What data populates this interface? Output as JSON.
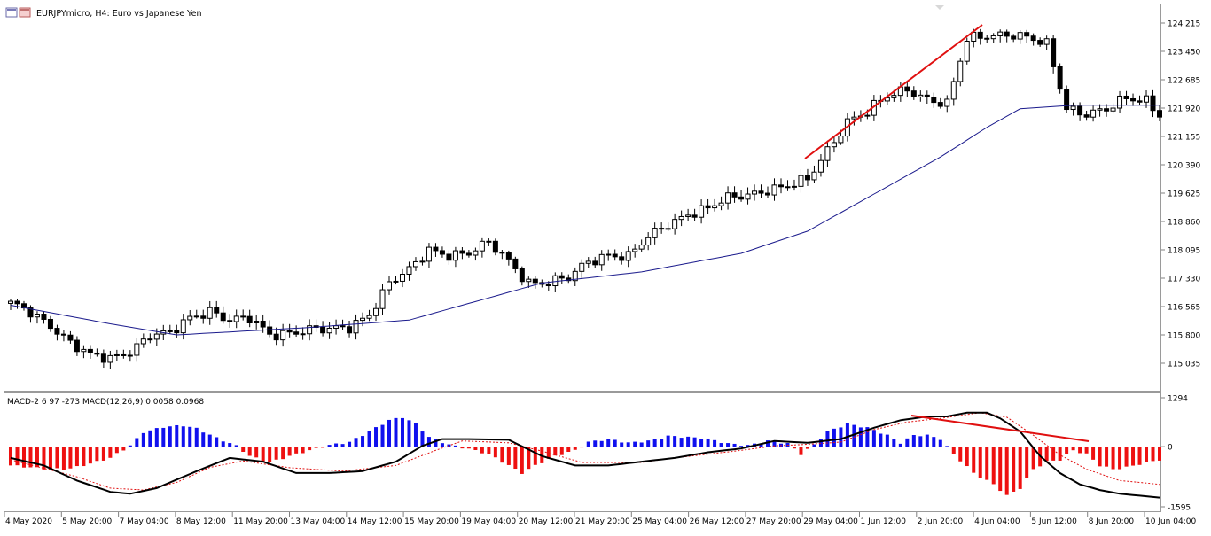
{
  "window": {
    "symbol": "EURJPYmicro",
    "timeframe": "H4",
    "description": "Euro vs Japanese Yen",
    "title_full": "EURJPYmicro, H4:  Euro vs Japanese Yen"
  },
  "colors": {
    "bull": "#ffffff",
    "bear": "#000000",
    "wick": "#000000",
    "ma": "#1a1a8c",
    "trendline": "#e01010",
    "hist_pos": "#1010ee",
    "hist_neg": "#ee1010",
    "macd_line": "#000000",
    "signal_line": "#e01010",
    "grid": "#c8c8c8"
  },
  "chart_data": [
    {
      "type": "candlestick",
      "symbol": "EURJPYmicro",
      "timeframe": "H4",
      "price_axis_labels": [
        "124.215",
        "123.450",
        "122.685",
        "121.920",
        "121.155",
        "120.390",
        "119.625",
        "118.860",
        "118.095",
        "117.330",
        "116.565",
        "115.800",
        "115.035"
      ],
      "ylim": [
        114.85,
        124.45
      ],
      "time_axis_labels": [
        "4 May 2020",
        "5 May 20:00",
        "7 May 04:00",
        "8 May 12:00",
        "11 May 20:00",
        "13 May 04:00",
        "14 May 12:00",
        "15 May 20:00",
        "19 May 04:00",
        "20 May 12:00",
        "21 May 20:00",
        "25 May 04:00",
        "26 May 12:00",
        "27 May 20:00",
        "29 May 04:00",
        "1 Jun 12:00",
        "2 Jun 20:00",
        "4 Jun 04:00",
        "5 Jun 12:00",
        "8 Jun 20:00",
        "10 Jun 04:00"
      ],
      "close_waypoints": [
        [
          0,
          116.6
        ],
        [
          3,
          116.4
        ],
        [
          6,
          116.1
        ],
        [
          9,
          115.6
        ],
        [
          12,
          115.2
        ],
        [
          15,
          115.15
        ],
        [
          18,
          115.4
        ],
        [
          21,
          115.8
        ],
        [
          24,
          115.8
        ],
        [
          27,
          116.25
        ],
        [
          30,
          116.5
        ],
        [
          33,
          116.2
        ],
        [
          36,
          116.2
        ],
        [
          39,
          115.8
        ],
        [
          42,
          115.9
        ],
        [
          45,
          115.95
        ],
        [
          48,
          115.9
        ],
        [
          51,
          116.0
        ],
        [
          54,
          116.4
        ],
        [
          57,
          117.2
        ],
        [
          60,
          117.5
        ],
        [
          63,
          118.1
        ],
        [
          66,
          118.0
        ],
        [
          69,
          118.0
        ],
        [
          72,
          118.25
        ],
        [
          75,
          117.8
        ],
        [
          78,
          117.25
        ],
        [
          81,
          117.2
        ],
        [
          84,
          117.3
        ],
        [
          87,
          117.8
        ],
        [
          90,
          118.0
        ],
        [
          93,
          117.9
        ],
        [
          96,
          118.4
        ],
        [
          99,
          118.8
        ],
        [
          102,
          119.1
        ],
        [
          105,
          119.2
        ],
        [
          108,
          119.45
        ],
        [
          111,
          119.6
        ],
        [
          114,
          119.75
        ],
        [
          117,
          119.8
        ],
        [
          120,
          119.95
        ],
        [
          123,
          120.8
        ],
        [
          126,
          121.6
        ],
        [
          129,
          121.8
        ],
        [
          132,
          122.2
        ],
        [
          135,
          122.45
        ],
        [
          138,
          122.2
        ],
        [
          141,
          122.0
        ],
        [
          144,
          123.75
        ],
        [
          147,
          123.9
        ],
        [
          150,
          123.95
        ],
        [
          153,
          123.8
        ],
        [
          156,
          123.6
        ],
        [
          159,
          121.95
        ],
        [
          162,
          121.8
        ],
        [
          165,
          121.85
        ],
        [
          168,
          122.15
        ],
        [
          171,
          122.15
        ],
        [
          173,
          121.8
        ]
      ],
      "moving_average_waypoints": [
        [
          0,
          116.6
        ],
        [
          15,
          116.1
        ],
        [
          25,
          115.8
        ],
        [
          45,
          116.0
        ],
        [
          60,
          116.2
        ],
        [
          80,
          117.2
        ],
        [
          95,
          117.5
        ],
        [
          110,
          118.0
        ],
        [
          120,
          118.6
        ],
        [
          130,
          119.6
        ],
        [
          140,
          120.6
        ],
        [
          147,
          121.4
        ],
        [
          152,
          121.9
        ],
        [
          160,
          122.0
        ],
        [
          173,
          122.0
        ]
      ],
      "annotation": "trend line (rising)"
    },
    {
      "type": "macd",
      "title": "MACD-2 6 97 -273 MACD(12,26,9) 0.0058 0.0968",
      "axis_labels": [
        "1294",
        "0",
        "-1595"
      ],
      "ylim": [
        -1595,
        1294
      ],
      "macd_waypoints": [
        [
          0,
          -300
        ],
        [
          5,
          -500
        ],
        [
          10,
          -900
        ],
        [
          15,
          -1200
        ],
        [
          18,
          -1250
        ],
        [
          22,
          -1100
        ],
        [
          28,
          -650
        ],
        [
          33,
          -300
        ],
        [
          38,
          -400
        ],
        [
          43,
          -700
        ],
        [
          48,
          -700
        ],
        [
          53,
          -650
        ],
        [
          58,
          -400
        ],
        [
          62,
          20
        ],
        [
          65,
          200
        ],
        [
          69,
          200
        ],
        [
          75,
          180
        ],
        [
          80,
          -250
        ],
        [
          85,
          -500
        ],
        [
          90,
          -500
        ],
        [
          95,
          -400
        ],
        [
          100,
          -300
        ],
        [
          105,
          -150
        ],
        [
          110,
          -50
        ],
        [
          115,
          150
        ],
        [
          120,
          100
        ],
        [
          125,
          200
        ],
        [
          130,
          500
        ],
        [
          134,
          700
        ],
        [
          138,
          800
        ],
        [
          141,
          800
        ],
        [
          144,
          900
        ],
        [
          147,
          900
        ],
        [
          149,
          750
        ],
        [
          152,
          400
        ],
        [
          155,
          -250
        ],
        [
          158,
          -700
        ],
        [
          161,
          -1000
        ],
        [
          164,
          -1150
        ],
        [
          167,
          -1250
        ],
        [
          170,
          -1300
        ],
        [
          173,
          -1350
        ]
      ],
      "signal_waypoints": [
        [
          0,
          -350
        ],
        [
          10,
          -800
        ],
        [
          15,
          -1100
        ],
        [
          20,
          -1150
        ],
        [
          25,
          -950
        ],
        [
          30,
          -550
        ],
        [
          35,
          -380
        ],
        [
          42,
          -560
        ],
        [
          50,
          -650
        ],
        [
          58,
          -500
        ],
        [
          64,
          -100
        ],
        [
          68,
          150
        ],
        [
          75,
          100
        ],
        [
          80,
          -120
        ],
        [
          86,
          -420
        ],
        [
          95,
          -420
        ],
        [
          100,
          -300
        ],
        [
          110,
          -100
        ],
        [
          115,
          20
        ],
        [
          120,
          60
        ],
        [
          125,
          120
        ],
        [
          130,
          450
        ],
        [
          135,
          650
        ],
        [
          140,
          750
        ],
        [
          146,
          900
        ],
        [
          150,
          780
        ],
        [
          154,
          300
        ],
        [
          158,
          -220
        ],
        [
          162,
          -600
        ],
        [
          167,
          -900
        ],
        [
          173,
          -1000
        ]
      ],
      "histogram_waypoints": [
        [
          0,
          -500
        ],
        [
          3,
          -550
        ],
        [
          6,
          -600
        ],
        [
          9,
          -580
        ],
        [
          12,
          -450
        ],
        [
          15,
          -300
        ],
        [
          18,
          30
        ],
        [
          20,
          380
        ],
        [
          23,
          520
        ],
        [
          26,
          560
        ],
        [
          28,
          480
        ],
        [
          31,
          230
        ],
        [
          34,
          20
        ],
        [
          36,
          -250
        ],
        [
          39,
          -420
        ],
        [
          42,
          -250
        ],
        [
          45,
          -100
        ],
        [
          48,
          40
        ],
        [
          51,
          120
        ],
        [
          54,
          400
        ],
        [
          57,
          700
        ],
        [
          59,
          780
        ],
        [
          61,
          600
        ],
        [
          63,
          250
        ],
        [
          66,
          50
        ],
        [
          69,
          -60
        ],
        [
          72,
          -200
        ],
        [
          75,
          -500
        ],
        [
          77,
          -700
        ],
        [
          79,
          -500
        ],
        [
          82,
          -250
        ],
        [
          85,
          -100
        ],
        [
          87,
          120
        ],
        [
          90,
          200
        ],
        [
          93,
          100
        ],
        [
          96,
          150
        ],
        [
          99,
          280
        ],
        [
          102,
          250
        ],
        [
          105,
          200
        ],
        [
          108,
          80
        ],
        [
          111,
          30
        ],
        [
          114,
          150
        ],
        [
          117,
          80
        ],
        [
          119,
          -200
        ],
        [
          121,
          50
        ],
        [
          123,
          400
        ],
        [
          126,
          600
        ],
        [
          129,
          500
        ],
        [
          132,
          300
        ],
        [
          134,
          100
        ],
        [
          136,
          300
        ],
        [
          138,
          300
        ],
        [
          140,
          200
        ],
        [
          142,
          -200
        ],
        [
          145,
          -700
        ],
        [
          148,
          -1000
        ],
        [
          150,
          -1300
        ],
        [
          152,
          -1100
        ],
        [
          154,
          -600
        ],
        [
          156,
          -400
        ],
        [
          158,
          -350
        ],
        [
          160,
          -100
        ],
        [
          162,
          -200
        ],
        [
          164,
          -500
        ],
        [
          166,
          -600
        ],
        [
          168,
          -550
        ],
        [
          171,
          -420
        ],
        [
          173,
          -350
        ]
      ],
      "annotation": "trend line (falling)"
    }
  ]
}
